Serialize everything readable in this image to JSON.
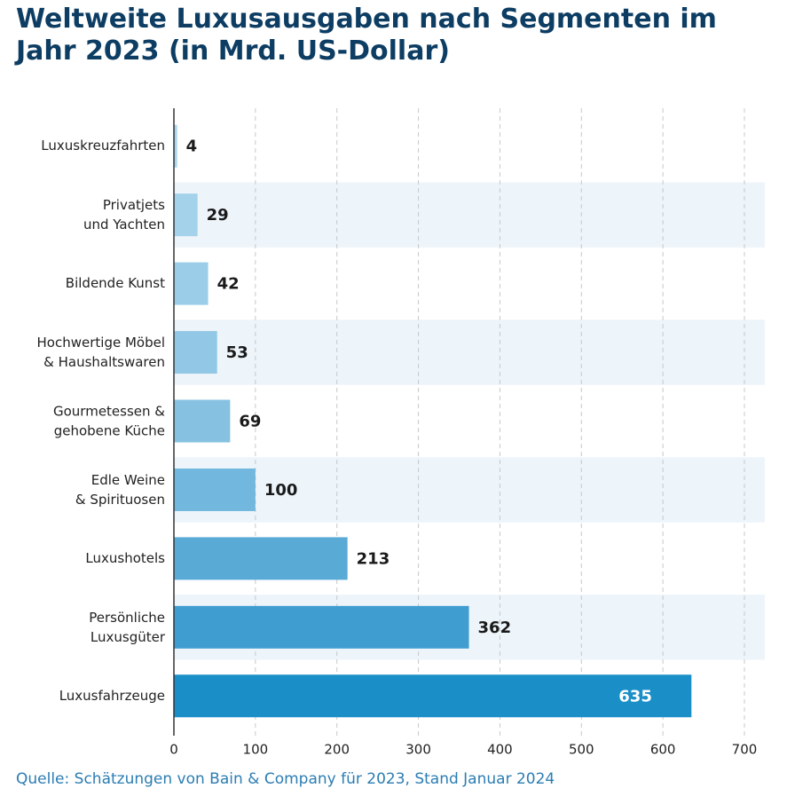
{
  "chart_data": {
    "type": "barh",
    "title": "Weltweite Luxusausgaben nach Segmenten im\nJahr 2023 (in Mrd. US-Dollar)",
    "categories": [
      "Luxuskreuzfahrten",
      "Privatjets\nund Yachten",
      "Bildende Kunst",
      "Hochwertige Möbel\n& Haushaltswaren",
      "Gourmetessen &\ngehobene Küche",
      "Edle Weine\n& Spirituosen",
      "Luxushotels",
      "Persönliche\nLuxusgüter",
      "Luxusfahrzeuge"
    ],
    "values": [
      4,
      29,
      42,
      53,
      69,
      100,
      213,
      362,
      635
    ],
    "colors": [
      "#a9d6ec",
      "#a3d2ea",
      "#9bcde8",
      "#92c8e5",
      "#86c1e2",
      "#72b7dd",
      "#5aaad6",
      "#3f9dd0",
      "#1a8fc7"
    ],
    "xlim": [
      0,
      700
    ],
    "xticks": [
      0,
      100,
      200,
      300,
      400,
      500,
      600,
      700
    ],
    "grid": true,
    "source": "Quelle: Schätzungen von Bain & Company für 2023, Stand Januar 2024"
  }
}
